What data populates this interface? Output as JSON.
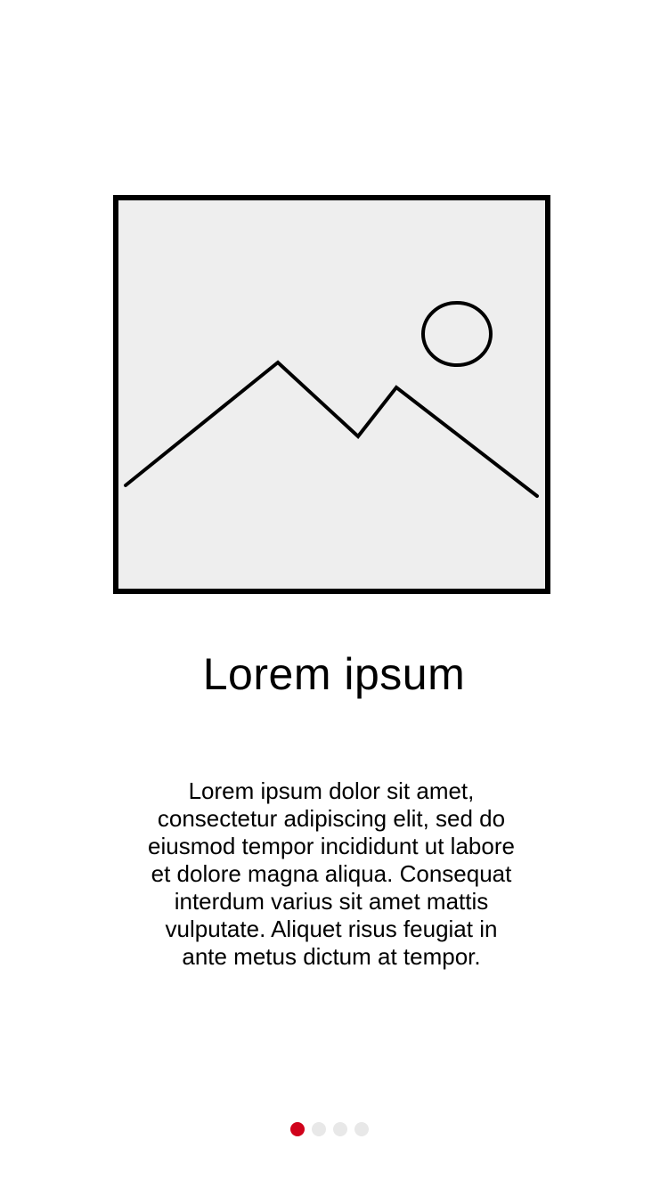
{
  "onboarding": {
    "image": {
      "icon": "image-placeholder-icon",
      "background_color": "#eeeeee",
      "border_color": "#000000"
    },
    "title": "Lorem ipsum",
    "description": "Lorem ipsum dolor sit amet, consectetur adipiscing elit, sed do eiusmod tempor incididunt ut labore et dolore magna aliqua. Consequat interdum varius sit amet mattis vulputate. Aliquet risus feugiat in ante metus dictum at tempor."
  },
  "pager": {
    "total": 4,
    "current": 1,
    "active_color": "#d0021b",
    "inactive_color": "#e8e8e8"
  }
}
